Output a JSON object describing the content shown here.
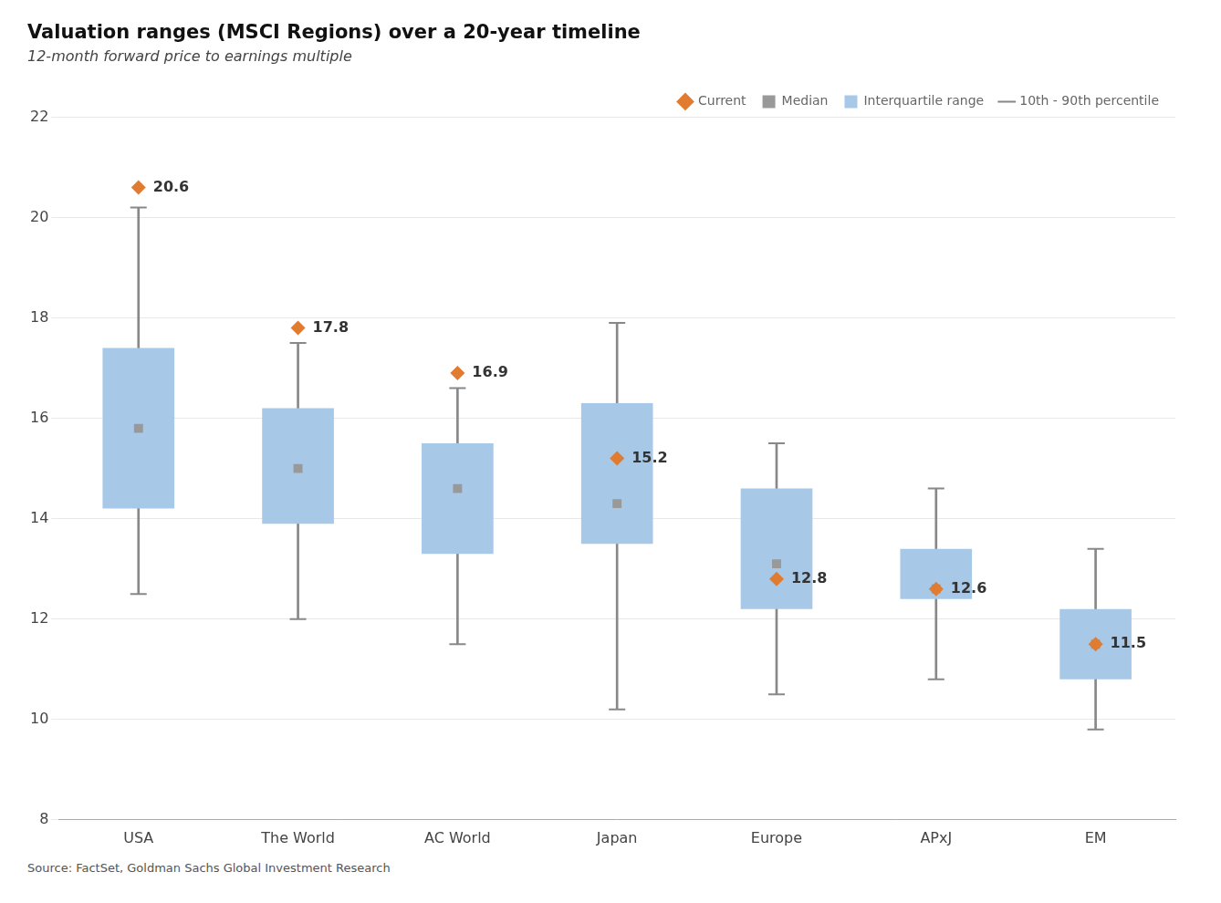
{
  "chart_data": {
    "type": "box_range",
    "title": "Valuation ranges (MSCI Regions) over a 20-year timeline",
    "subtitle": "12-month forward price to earnings multiple",
    "source": "Source: FactSet, Goldman Sachs Global Investment Research",
    "categories": [
      "USA",
      "The World",
      "AC World",
      "Japan",
      "Europe",
      "APxJ",
      "EM"
    ],
    "series": [
      {
        "name": "Interquartile range",
        "type": "range",
        "low": [
          14.2,
          13.9,
          13.3,
          13.5,
          12.2,
          12.4,
          10.8
        ],
        "high": [
          17.4,
          16.2,
          15.5,
          16.3,
          14.6,
          13.4,
          12.2
        ],
        "color": "#a8c8e8"
      },
      {
        "name": "Median",
        "type": "scatter",
        "marker": "square",
        "values": [
          15.8,
          15.0,
          14.6,
          14.3,
          13.1,
          12.6,
          11.5
        ],
        "color": "#999999"
      },
      {
        "name": "Current",
        "type": "scatter",
        "marker": "diamond",
        "values": [
          20.6,
          17.8,
          16.9,
          15.2,
          12.8,
          12.6,
          11.5
        ],
        "color": "#e07b30",
        "data_labels": true
      },
      {
        "name": "10th - 90th percentile",
        "type": "error_bar",
        "low": [
          12.5,
          12.0,
          11.5,
          10.2,
          10.5,
          10.8,
          9.8
        ],
        "high": [
          20.2,
          17.5,
          16.6,
          17.9,
          15.5,
          14.6,
          13.4
        ],
        "color": "#888888"
      }
    ],
    "ylim": [
      8,
      22
    ],
    "yticks": [
      8,
      10,
      12,
      14,
      16,
      18,
      20,
      22
    ],
    "grid": "y",
    "legend": "top"
  }
}
